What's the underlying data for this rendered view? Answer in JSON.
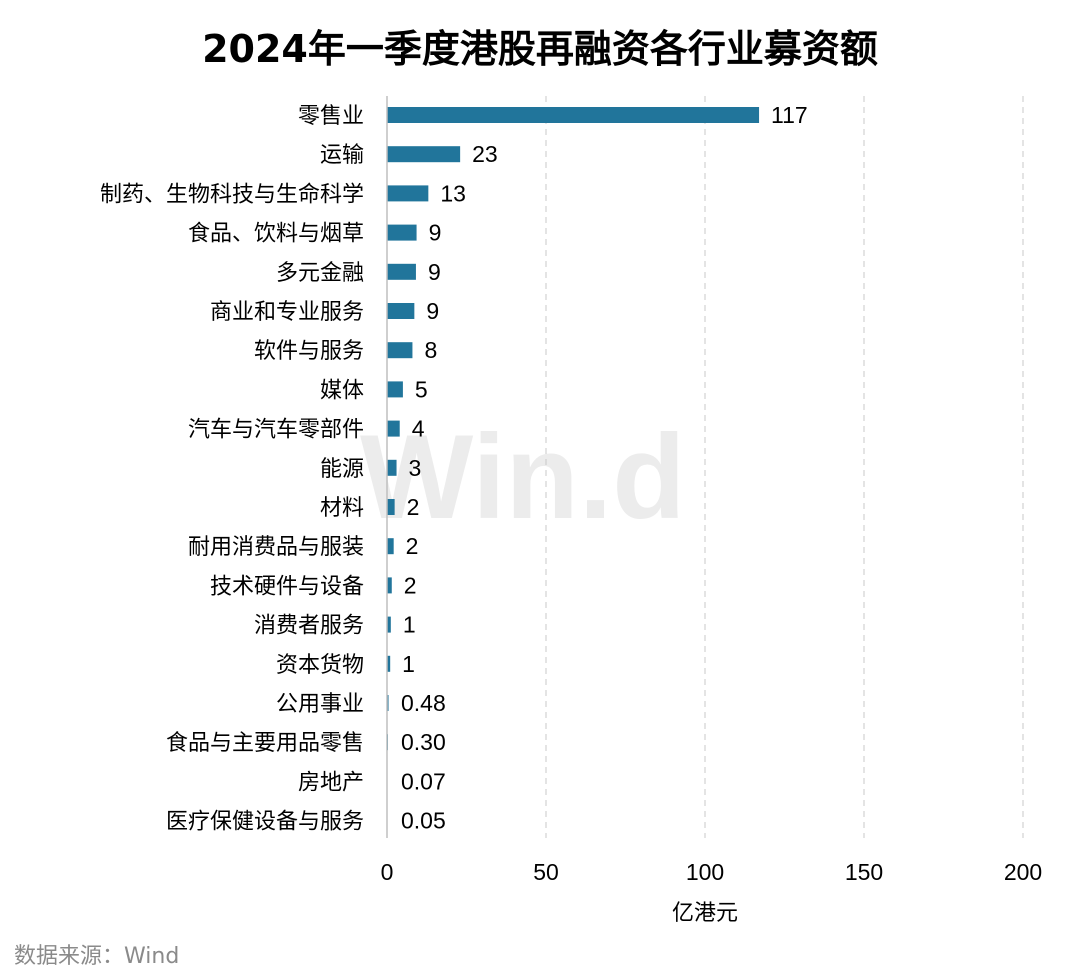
{
  "title": "2024年一季度港股再融资各行业募资额",
  "source": "数据来源：Wind",
  "watermark": "Win.d",
  "chart_data": {
    "type": "bar",
    "orientation": "horizontal",
    "title": "2024年一季度港股再融资各行业募资额",
    "xlabel": "亿港元",
    "ylabel": "",
    "xlim": [
      0,
      200
    ],
    "xticks": [
      0,
      50,
      100,
      150,
      200
    ],
    "grid": "vertical dashed",
    "bar_color": "#21759b",
    "categories": [
      "零售业",
      "运输",
      "制药、生物科技与生命科学",
      "食品、饮料与烟草",
      "多元金融",
      "商业和专业服务",
      "软件与服务",
      "媒体",
      "汽车与汽车零部件",
      "能源",
      "材料",
      "耐用消费品与服装",
      "技术硬件与设备",
      "消费者服务",
      "资本货物",
      "公用事业",
      "食品与主要用品零售",
      "房地产",
      "医疗保健设备与服务"
    ],
    "values": [
      117,
      23,
      13,
      9.3,
      9.1,
      8.6,
      8,
      5,
      4,
      3,
      2.4,
      2.1,
      1.5,
      1.2,
      1,
      0.48,
      0.3,
      0.07,
      0.05
    ],
    "value_labels": [
      "117",
      "23",
      "13",
      "9",
      "9",
      "9",
      "8",
      "5",
      "4",
      "3",
      "2",
      "2",
      "2",
      "1",
      "1",
      "0.48",
      "0.30",
      "0.07",
      "0.05"
    ]
  }
}
